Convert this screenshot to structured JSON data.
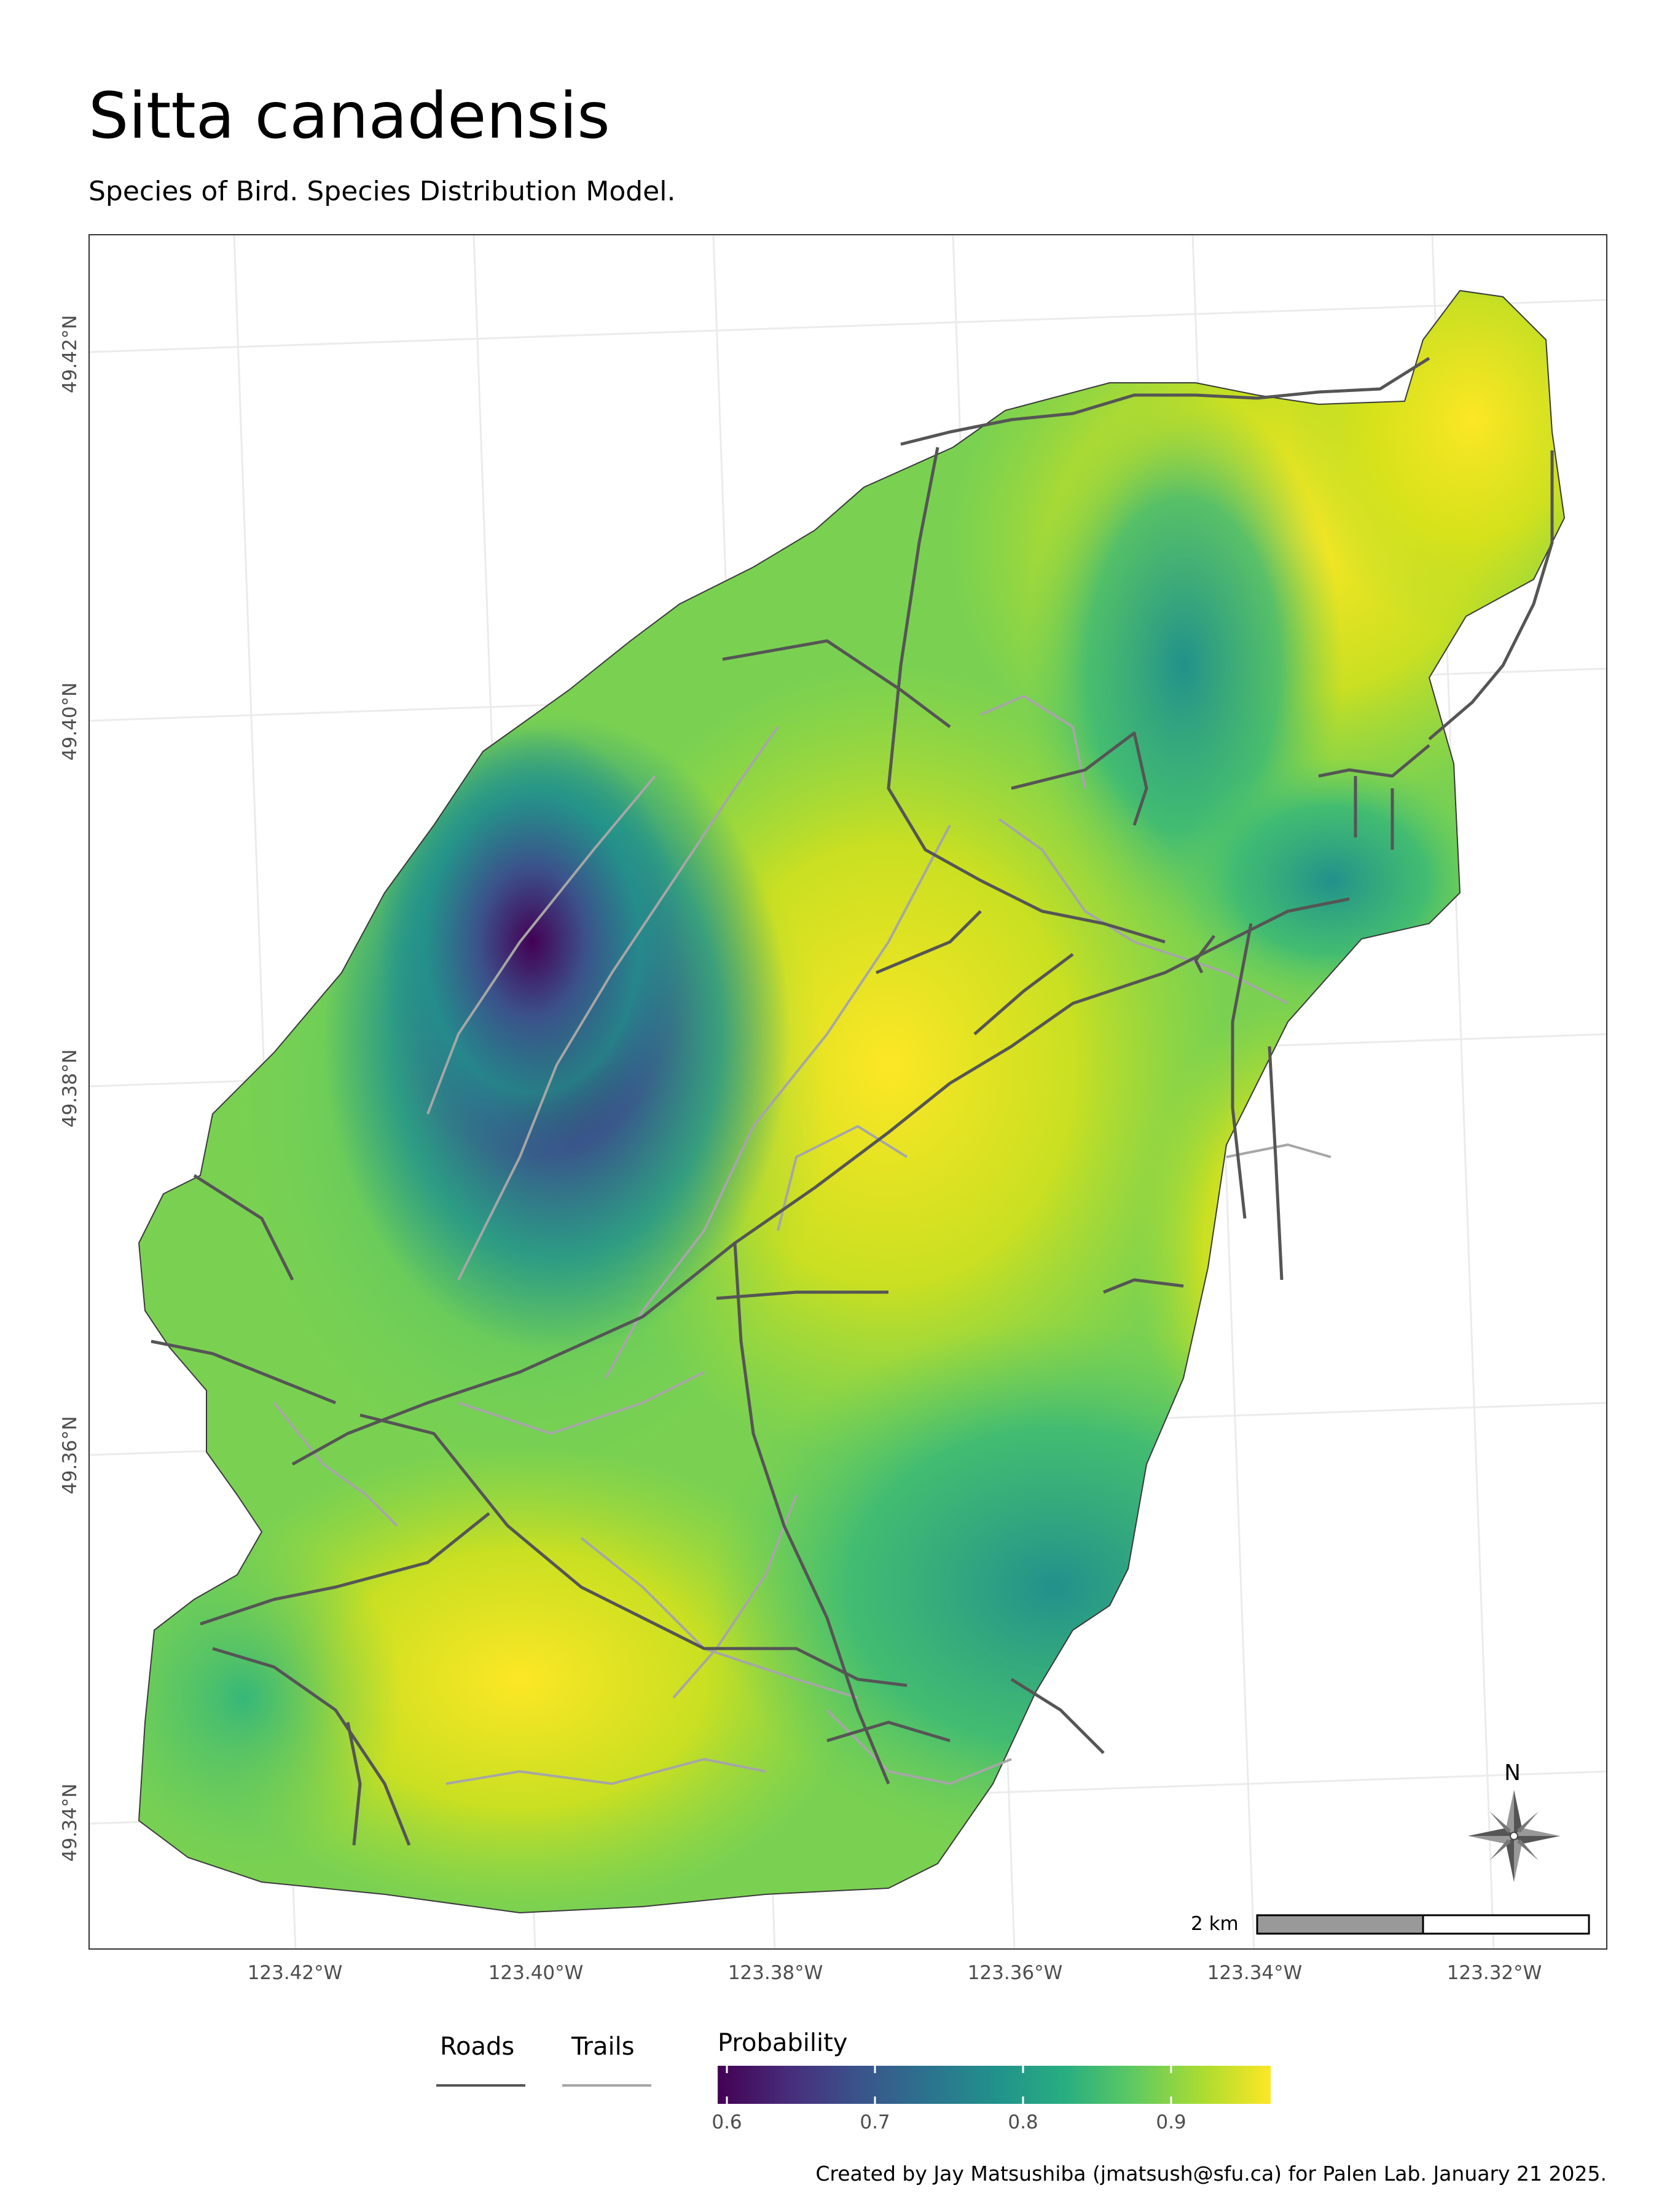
{
  "title": "Sitta canadensis",
  "subtitle": "Species of Bird. Species Distribution Model.",
  "axes": {
    "lat_labels": [
      "49.42°N",
      "49.40°N",
      "49.38°N",
      "49.36°N",
      "49.34°N"
    ],
    "lon_labels": [
      "123.42°W",
      "123.40°W",
      "123.38°W",
      "123.36°W",
      "123.34°W",
      "123.32°W"
    ]
  },
  "map": {
    "scale_bar": {
      "label": "2 km"
    },
    "north_arrow": {
      "label": "N"
    },
    "colors": {
      "roads": "#555555",
      "trails": "#a6a6a6",
      "graticule": "#ebebeb"
    }
  },
  "legend": {
    "roads_label": "Roads",
    "trails_label": "Trails",
    "probability_title": "Probability",
    "colorbar_ticks": [
      "0.6",
      "0.7",
      "0.8",
      "0.9"
    ],
    "colormap": "viridis"
  },
  "caption": "Created by Jay Matsushiba (jmatsush@sfu.ca) for Palen Lab. January 21 2025."
}
